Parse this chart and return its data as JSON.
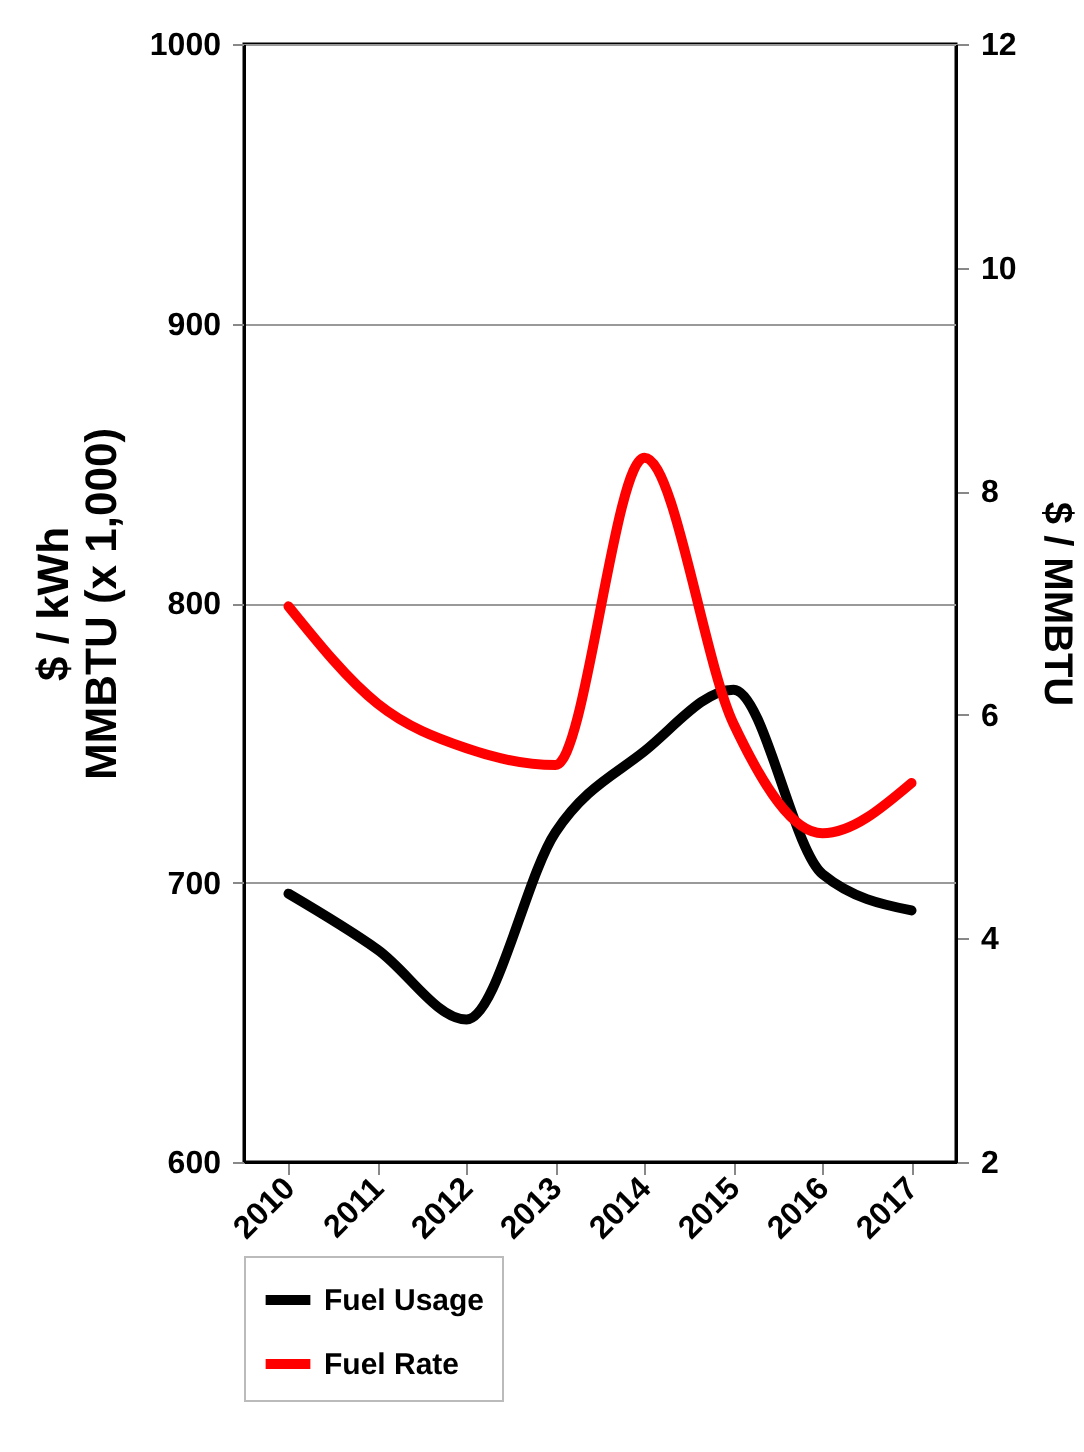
{
  "chart_data": {
    "type": "line",
    "categories": [
      "2010",
      "2011",
      "2012",
      "2013",
      "2014",
      "2015",
      "2016",
      "2017"
    ],
    "ylabel": "$ / kWh\nMMBTU (x 1,000)",
    "y2label": "$ / MMBTU",
    "ylim": [
      600,
      1000
    ],
    "yticks": [
      600,
      700,
      800,
      900,
      1000
    ],
    "y2lim": [
      2,
      12
    ],
    "y2ticks": [
      2,
      4,
      6,
      8,
      10,
      12
    ],
    "grid": "y",
    "legend": "bottom",
    "marker": "none",
    "line_style": "solid",
    "series": [
      {
        "name": "Fuel Usage",
        "color": "#000000",
        "values": [
          696,
          676,
          651,
          718,
          747,
          769,
          703,
          690
        ]
      },
      {
        "name": "Fuel Rate",
        "color": "#ff0000",
        "axis": "y2",
        "values": [
          6.97,
          6.1,
          5.7,
          5.55,
          8.3,
          5.92,
          4.94,
          5.39
        ]
      }
    ]
  }
}
